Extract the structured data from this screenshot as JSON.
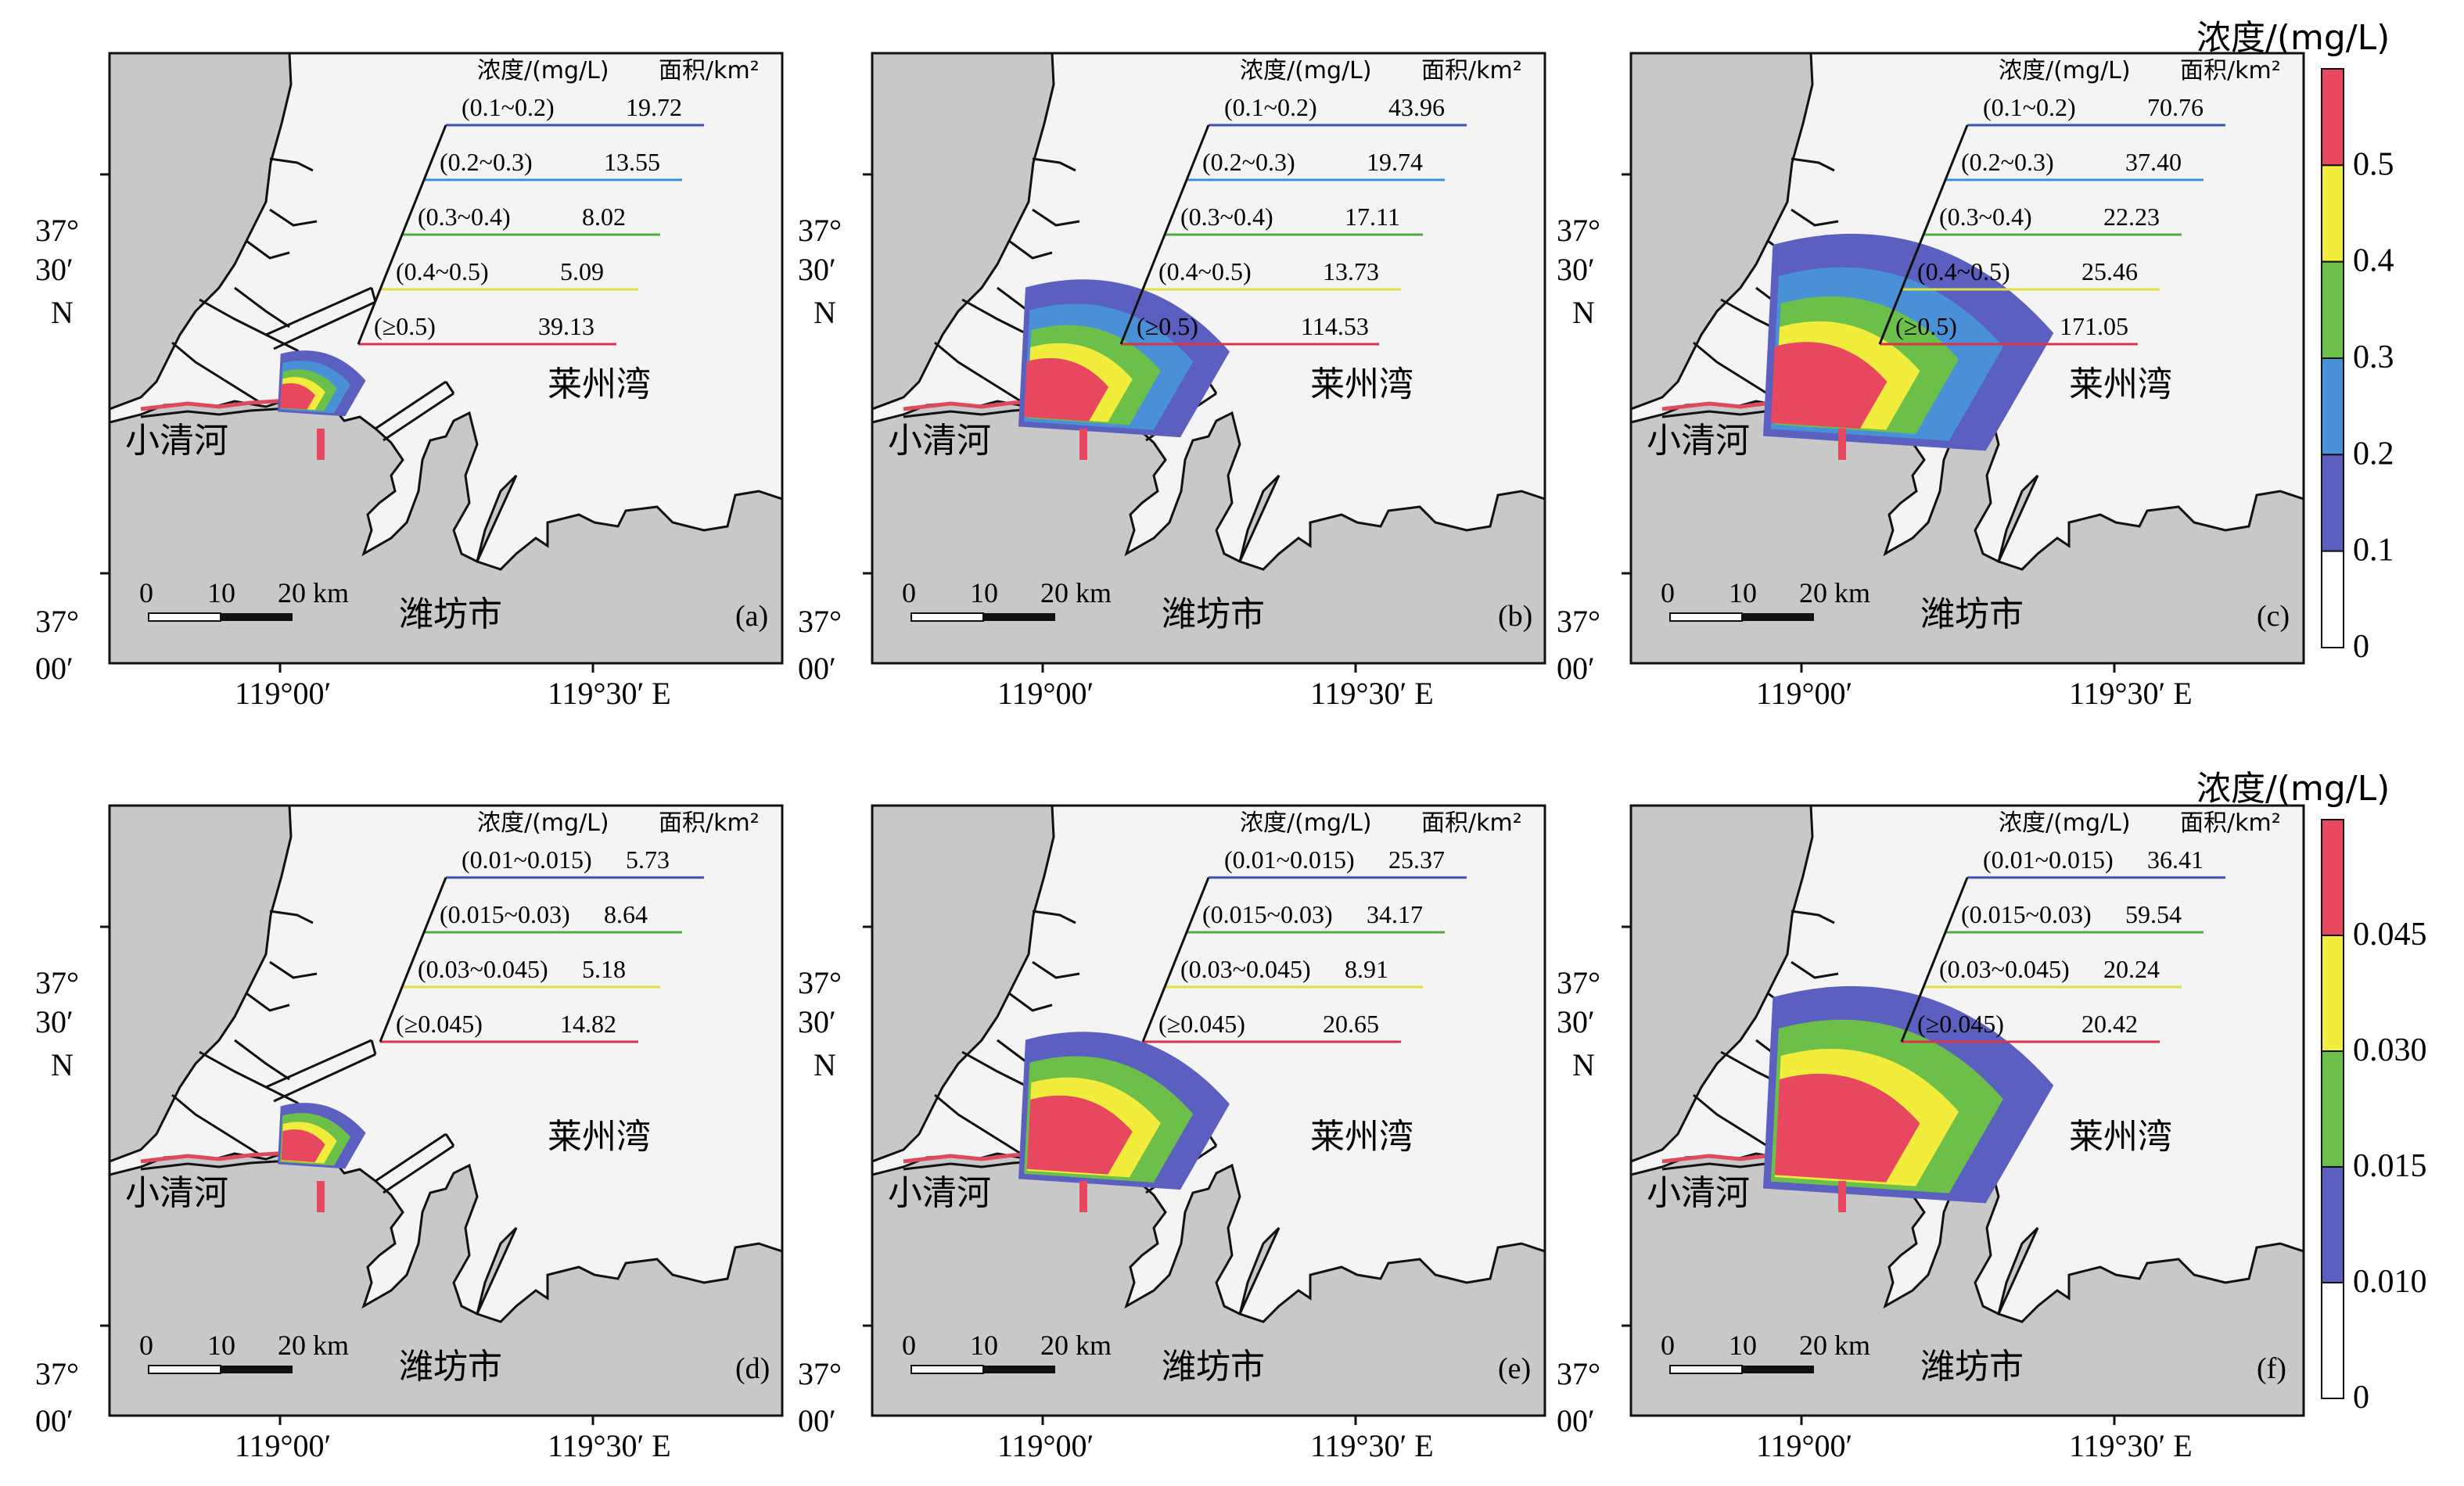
{
  "colorbar_top": {
    "title": "浓度/(mg/L)",
    "ticks": [
      "0.5",
      "0.4",
      "0.3",
      "0.2",
      "0.1",
      "0"
    ],
    "colors": [
      "#e8485f",
      "#f2ec3c",
      "#6cc04a",
      "#4a90d6",
      "#5b5fbf",
      "#ffffff"
    ]
  },
  "colorbar_bottom": {
    "title": "浓度/(mg/L)",
    "ticks": [
      "0.045",
      "0.030",
      "0.015",
      "0.010",
      "0"
    ],
    "colors": [
      "#e8485f",
      "#f2ec3c",
      "#6cc04a",
      "#5b5fbf",
      "#ffffff"
    ]
  },
  "legend_colors": [
    "#3d4fb0",
    "#3b8fd4",
    "#4caf3c",
    "#e0e040",
    "#d8334a"
  ],
  "legend_colors_bottom": [
    "#3d4fb0",
    "#4caf3c",
    "#e0e040",
    "#d8334a"
  ],
  "map_colors": {
    "land": "#c8c8c8",
    "sea": "#f4f4f4",
    "coast": "#111111"
  },
  "panels": [
    {
      "label": "(a)",
      "legend_header_conc": "浓度/(mg/L)",
      "legend_header_area": "面积/km²",
      "rows": [
        {
          "range": "(0.1~0.2)",
          "area": "19.72"
        },
        {
          "range": "(0.2~0.3)",
          "area": "13.55"
        },
        {
          "range": "(0.3~0.4)",
          "area": "8.02"
        },
        {
          "range": "(0.4~0.5)",
          "area": "5.09"
        },
        {
          "range": "(≥0.5)",
          "area": "39.13"
        }
      ],
      "plume_level": 1
    },
    {
      "label": "(b)",
      "legend_header_conc": "浓度/(mg/L)",
      "legend_header_area": "面积/km²",
      "rows": [
        {
          "range": "(0.1~0.2)",
          "area": "43.96"
        },
        {
          "range": "(0.2~0.3)",
          "area": "19.74"
        },
        {
          "range": "(0.3~0.4)",
          "area": "17.11"
        },
        {
          "range": "(0.4~0.5)",
          "area": "13.73"
        },
        {
          "range": "(≥0.5)",
          "area": "114.53"
        }
      ],
      "plume_level": 2
    },
    {
      "label": "(c)",
      "legend_header_conc": "浓度/(mg/L)",
      "legend_header_area": "面积/km²",
      "rows": [
        {
          "range": "(0.1~0.2)",
          "area": "70.76"
        },
        {
          "range": "(0.2~0.3)",
          "area": "37.40"
        },
        {
          "range": "(0.3~0.4)",
          "area": "22.23"
        },
        {
          "range": "(0.4~0.5)",
          "area": "25.46"
        },
        {
          "range": "(≥0.5)",
          "area": "171.05"
        }
      ],
      "plume_level": 3
    },
    {
      "label": "(d)",
      "legend_header_conc": "浓度/(mg/L)",
      "legend_header_area": "面积/km²",
      "rows": [
        {
          "range": "(0.01~0.015)",
          "area": "5.73"
        },
        {
          "range": "(0.015~0.03)",
          "area": "8.64"
        },
        {
          "range": "(0.03~0.045)",
          "area": "5.18"
        },
        {
          "range": "(≥0.045)",
          "area": "14.82"
        }
      ],
      "plume_level": 1
    },
    {
      "label": "(e)",
      "legend_header_conc": "浓度/(mg/L)",
      "legend_header_area": "面积/km²",
      "rows": [
        {
          "range": "(0.01~0.015)",
          "area": "25.37"
        },
        {
          "range": "(0.015~0.03)",
          "area": "34.17"
        },
        {
          "range": "(0.03~0.045)",
          "area": "8.91"
        },
        {
          "range": "(≥0.045)",
          "area": "20.65"
        }
      ],
      "plume_level": 2
    },
    {
      "label": "(f)",
      "legend_header_conc": "浓度/(mg/L)",
      "legend_header_area": "面积/km²",
      "rows": [
        {
          "range": "(0.01~0.015)",
          "area": "36.41"
        },
        {
          "range": "(0.015~0.03)",
          "area": "59.54"
        },
        {
          "range": "(0.03~0.045)",
          "area": "20.24"
        },
        {
          "range": "(≥0.045)",
          "area": "20.42"
        }
      ],
      "plume_level": 3
    }
  ],
  "map_labels": {
    "bay": "莱州湾",
    "river": "小清河",
    "city": "潍坊市",
    "scalebar": [
      "0",
      "10",
      "20 km"
    ]
  },
  "axis_labels": {
    "lat_top": [
      "37°",
      "30′",
      "N"
    ],
    "lat_bottom": [
      "37°",
      "00′"
    ],
    "lon_left": "119°00′",
    "lon_right": "119°30′ E"
  }
}
